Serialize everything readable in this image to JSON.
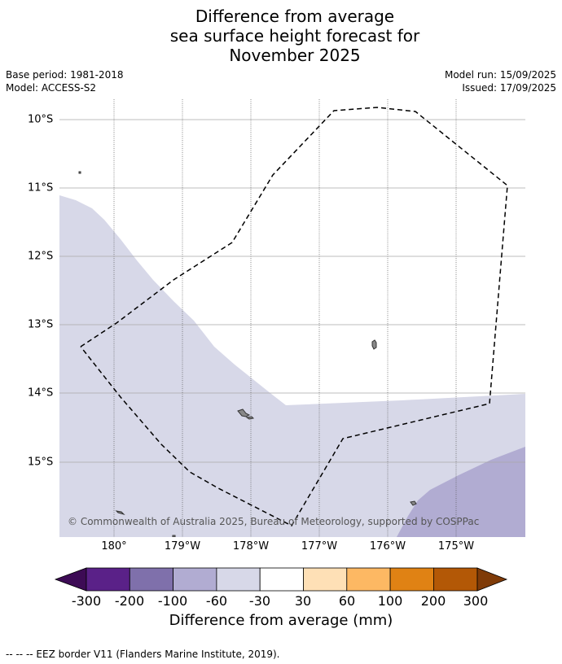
{
  "title": {
    "line1": "Difference from average",
    "line2": "sea surface height forecast for",
    "line3": "November 2025"
  },
  "meta": {
    "base_period": "Base period: 1981-2018",
    "model": "Model: ACCESS-S2",
    "model_run": "Model run: 15/09/2025",
    "issued": "Issued: 17/09/2025"
  },
  "map": {
    "lat_labels": [
      "10°S",
      "11°S",
      "12°S",
      "13°S",
      "14°S",
      "15°S"
    ],
    "lon_labels": [
      "180°",
      "179°W",
      "178°W",
      "177°W",
      "176°W",
      "175°W"
    ],
    "copyright": "© Commonwealth of Australia 2025, Bureau of Meteorology, supported by COSPPac",
    "colors": {
      "land": "#888888",
      "light_band": "#d7d8e8",
      "mid_band": "#b1acd2",
      "eez_line": "#000000"
    }
  },
  "colorbar": {
    "ticks": [
      "-300",
      "-200",
      "-100",
      "-60",
      "-30",
      "30",
      "60",
      "100",
      "200",
      "300"
    ],
    "colors": [
      "#3d0b55",
      "#5a2188",
      "#7f70ab",
      "#b1acd2",
      "#d7d8e8",
      "#ffffff",
      "#fee0b6",
      "#fdb863",
      "#e08214",
      "#b35806",
      "#7f3b08"
    ],
    "label": "Difference from average (mm)"
  },
  "footnote": "--  --  -- EEZ border V11 (Flanders Marine Institute, 2019)."
}
